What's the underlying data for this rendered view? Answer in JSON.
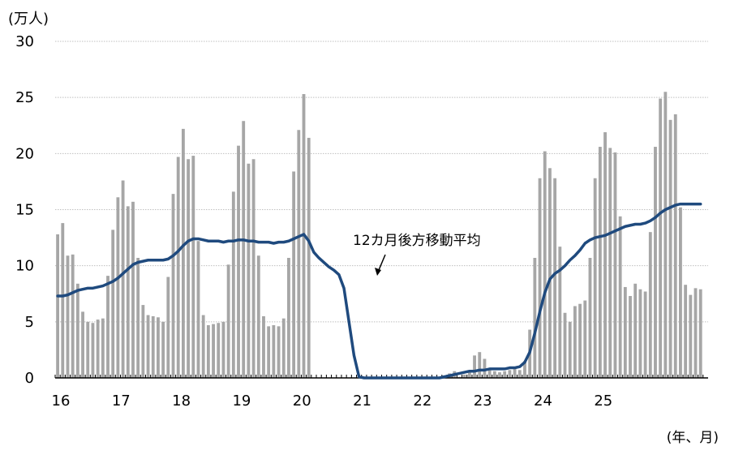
{
  "chart_data": {
    "type": "bar",
    "title": "",
    "ylabel": "(万人)",
    "xlabel": "(年、月)",
    "ylim": [
      0,
      30
    ],
    "yticks": [
      0,
      5,
      10,
      15,
      20,
      25,
      30
    ],
    "x_start": "2016-01",
    "xticks": [
      "16",
      "17",
      "18",
      "19",
      "20",
      "21",
      "22",
      "23",
      "24",
      "25"
    ],
    "grid": true,
    "series": [
      {
        "kind": "bar",
        "color": "#a6a6a6",
        "values": [
          12.8,
          13.8,
          10.9,
          11.0,
          8.4,
          5.9,
          5.0,
          4.9,
          5.2,
          5.3,
          9.1,
          13.2,
          16.1,
          17.6,
          15.3,
          15.7,
          10.7,
          6.5,
          5.6,
          5.5,
          5.4,
          5.0,
          9.0,
          16.4,
          19.7,
          22.2,
          19.5,
          19.8,
          12.2,
          5.6,
          4.7,
          4.8,
          4.9,
          5.0,
          10.1,
          16.6,
          20.7,
          22.9,
          19.1,
          19.5,
          10.9,
          5.5,
          4.6,
          4.7,
          4.6,
          5.3,
          10.7,
          18.4,
          22.1,
          25.3,
          21.4,
          0,
          0,
          0,
          0,
          0,
          0,
          0,
          0,
          0,
          0,
          0,
          0,
          0,
          0,
          0,
          0,
          0,
          0,
          0,
          0,
          0,
          0,
          0,
          0,
          0,
          0,
          0.2,
          0.4,
          0.6,
          0.1,
          0.3,
          0.5,
          2.0,
          2.3,
          1.7,
          0.8,
          0.6,
          0.5,
          0.6,
          0.7,
          0.8,
          0.7,
          1.5,
          4.3,
          10.7,
          17.8,
          20.2,
          18.7,
          17.8,
          11.7,
          5.8,
          5.0,
          6.4,
          6.6,
          6.9,
          10.7,
          17.8,
          20.6,
          21.9,
          20.5,
          20.1,
          14.4,
          8.1,
          7.3,
          8.4,
          7.9,
          7.7,
          13.0,
          20.6,
          24.9,
          25.5,
          23.0,
          23.5,
          15.2,
          8.3,
          7.4,
          8.0,
          7.9
        ]
      },
      {
        "kind": "line",
        "name": "12カ月後方移動平均",
        "color": "#1f4a7e",
        "values": [
          7.3,
          7.3,
          7.4,
          7.6,
          7.8,
          7.9,
          8.0,
          8.0,
          8.1,
          8.2,
          8.4,
          8.6,
          8.9,
          9.3,
          9.7,
          10.1,
          10.3,
          10.4,
          10.5,
          10.5,
          10.5,
          10.5,
          10.6,
          10.9,
          11.3,
          11.8,
          12.2,
          12.4,
          12.4,
          12.3,
          12.2,
          12.2,
          12.2,
          12.1,
          12.2,
          12.2,
          12.3,
          12.3,
          12.2,
          12.2,
          12.1,
          12.1,
          12.1,
          12.0,
          12.1,
          12.1,
          12.2,
          12.4,
          12.6,
          12.8,
          12.2,
          11.2,
          10.7,
          10.3,
          9.9,
          9.6,
          9.2,
          8.0,
          5.0,
          2.0,
          0.1,
          0,
          0,
          0,
          0,
          0,
          0,
          0,
          0,
          0,
          0,
          0,
          0,
          0,
          0,
          0,
          0,
          0.1,
          0.2,
          0.3,
          0.4,
          0.5,
          0.6,
          0.6,
          0.7,
          0.7,
          0.8,
          0.8,
          0.8,
          0.8,
          0.9,
          0.9,
          1.0,
          1.4,
          2.3,
          4.0,
          5.9,
          7.6,
          8.8,
          9.3,
          9.6,
          10.0,
          10.5,
          10.9,
          11.4,
          12.0,
          12.3,
          12.5,
          12.6,
          12.7,
          12.9,
          13.1,
          13.3,
          13.5,
          13.6,
          13.7,
          13.7,
          13.8,
          14.0,
          14.3,
          14.7,
          15.0,
          15.2,
          15.4,
          15.5,
          15.5,
          15.5,
          15.5,
          15.5
        ]
      }
    ],
    "annotations": [
      {
        "text": "12カ月後方移動平均",
        "points_to_series": 1
      }
    ]
  }
}
